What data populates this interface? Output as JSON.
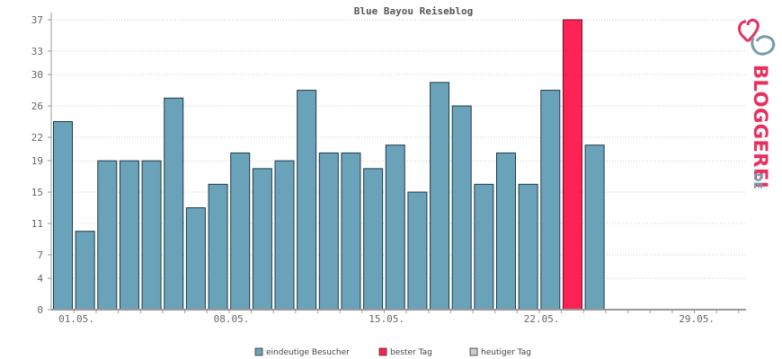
{
  "chart_data": {
    "type": "bar",
    "title": "Blue Bayou Reiseblog",
    "xlabel": "",
    "ylabel": "",
    "ylim": [
      0,
      37
    ],
    "yticks": [
      "0",
      "4",
      "7",
      "11",
      "15",
      "19",
      "22",
      "26",
      "30",
      "33",
      "37"
    ],
    "xtick_labels": [
      {
        "label": "01.05.",
        "day_index": 0
      },
      {
        "label": "08.05.",
        "day_index": 7
      },
      {
        "label": "15.05.",
        "day_index": 14
      },
      {
        "label": "22.05.",
        "day_index": 21
      },
      {
        "label": "29.05.",
        "day_index": 28
      }
    ],
    "days_total": 31,
    "values": [
      24,
      10,
      19,
      19,
      19,
      27,
      13,
      16,
      20,
      18,
      19,
      28,
      20,
      20,
      18,
      21,
      15,
      29,
      26,
      16,
      20,
      16,
      28,
      37,
      21
    ],
    "best_day_index": 23,
    "colors": {
      "bar": "#6aa2b9",
      "bar_outline": "#1f3b47",
      "best": "#ff2255",
      "today": "#cccccc",
      "grid": "#cccccc",
      "axis": "#999999"
    },
    "legend": [
      {
        "label": "eindeutige Besucher",
        "color": "#6aa2b9"
      },
      {
        "label": "bester Tag",
        "color": "#ff2255"
      },
      {
        "label": "heutiger Tag",
        "color": "#cccccc"
      }
    ],
    "legend_position": "bottom-center",
    "grid": true
  },
  "logo": {
    "text": "BLOGGEREI",
    "suffix": ".DE",
    "colors": {
      "primary": "#e8305e",
      "secondary": "#7a9aab"
    }
  }
}
